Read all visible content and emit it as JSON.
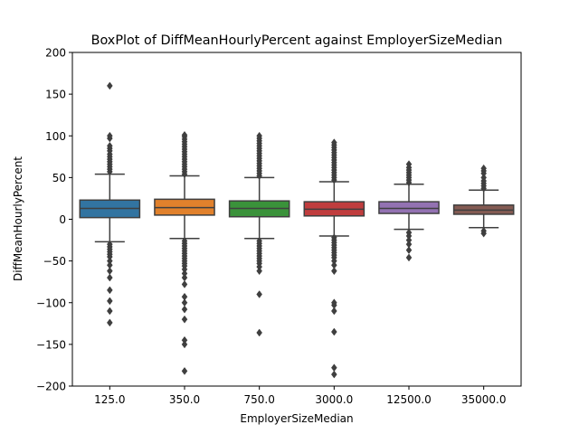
{
  "chart_data": {
    "type": "box",
    "title": "BoxPlot of DiffMeanHourlyPercent against EmployerSizeMedian",
    "xlabel": "EmployerSizeMedian",
    "ylabel": "DiffMeanHourlyPercent",
    "ylim": [
      -200,
      200
    ],
    "yticks": [
      200,
      150,
      100,
      50,
      0,
      -50,
      -100,
      -150,
      -200
    ],
    "ytick_labels": [
      "200",
      "150",
      "100",
      "50",
      "0",
      "−50",
      "−100",
      "−150",
      "−200"
    ],
    "grid": false,
    "categories": [
      "125.0",
      "350.0",
      "750.0",
      "3000.0",
      "12500.0",
      "35000.0"
    ],
    "colors": [
      "#3274a1",
      "#e1812c",
      "#3a923a",
      "#c03d3e",
      "#9372b2",
      "#845b53"
    ],
    "boxes": [
      {
        "q1": 2,
        "median": 13,
        "q3": 23,
        "whisker_low": -27,
        "whisker_high": 54,
        "outliers_high": [
          57,
          60,
          63,
          66,
          69,
          72,
          75,
          78,
          82,
          85,
          88,
          97,
          100,
          160
        ],
        "outliers_low": [
          -30,
          -33,
          -36,
          -39,
          -42,
          -45,
          -50,
          -55,
          -62,
          -70,
          -85,
          -98,
          -110,
          -124
        ]
      },
      {
        "q1": 5,
        "median": 14,
        "q3": 24,
        "whisker_low": -23,
        "whisker_high": 52,
        "outliers_high": [
          54,
          57,
          60,
          63,
          66,
          69,
          72,
          75,
          78,
          81,
          84,
          87,
          90,
          93,
          96,
          99,
          101
        ],
        "outliers_low": [
          -26,
          -29,
          -32,
          -35,
          -38,
          -41,
          -44,
          -47,
          -50,
          -53,
          -56,
          -60,
          -65,
          -70,
          -78,
          -93,
          -100,
          -108,
          -120,
          -145,
          -150,
          -182
        ]
      },
      {
        "q1": 3,
        "median": 13,
        "q3": 22,
        "whisker_low": -23,
        "whisker_high": 50,
        "outliers_high": [
          52,
          55,
          58,
          61,
          64,
          67,
          70,
          73,
          76,
          79,
          82,
          85,
          88,
          91,
          94,
          97,
          100
        ],
        "outliers_low": [
          -26,
          -29,
          -32,
          -35,
          -38,
          -41,
          -44,
          -47,
          -50,
          -53,
          -57,
          -62,
          -90,
          -136
        ]
      },
      {
        "q1": 4,
        "median": 12,
        "q3": 21,
        "whisker_low": -20,
        "whisker_high": 45,
        "outliers_high": [
          47,
          50,
          53,
          56,
          59,
          62,
          65,
          68,
          71,
          74,
          77,
          80,
          83,
          86,
          89,
          92
        ],
        "outliers_low": [
          -22,
          -25,
          -28,
          -31,
          -34,
          -37,
          -40,
          -43,
          -46,
          -50,
          -55,
          -62,
          -100,
          -103,
          -110,
          -135,
          -178,
          -186
        ]
      },
      {
        "q1": 7,
        "median": 13,
        "q3": 21,
        "whisker_low": -12,
        "whisker_high": 42,
        "outliers_high": [
          44,
          47,
          50,
          53,
          56,
          59,
          62,
          66
        ],
        "outliers_low": [
          -16,
          -20,
          -25,
          -30,
          -37,
          -46
        ]
      },
      {
        "q1": 6,
        "median": 11,
        "q3": 17,
        "whisker_low": -10,
        "whisker_high": 35,
        "outliers_high": [
          37,
          40,
          43,
          46,
          50,
          55,
          58,
          61
        ],
        "outliers_low": [
          -14,
          -17
        ]
      }
    ]
  }
}
